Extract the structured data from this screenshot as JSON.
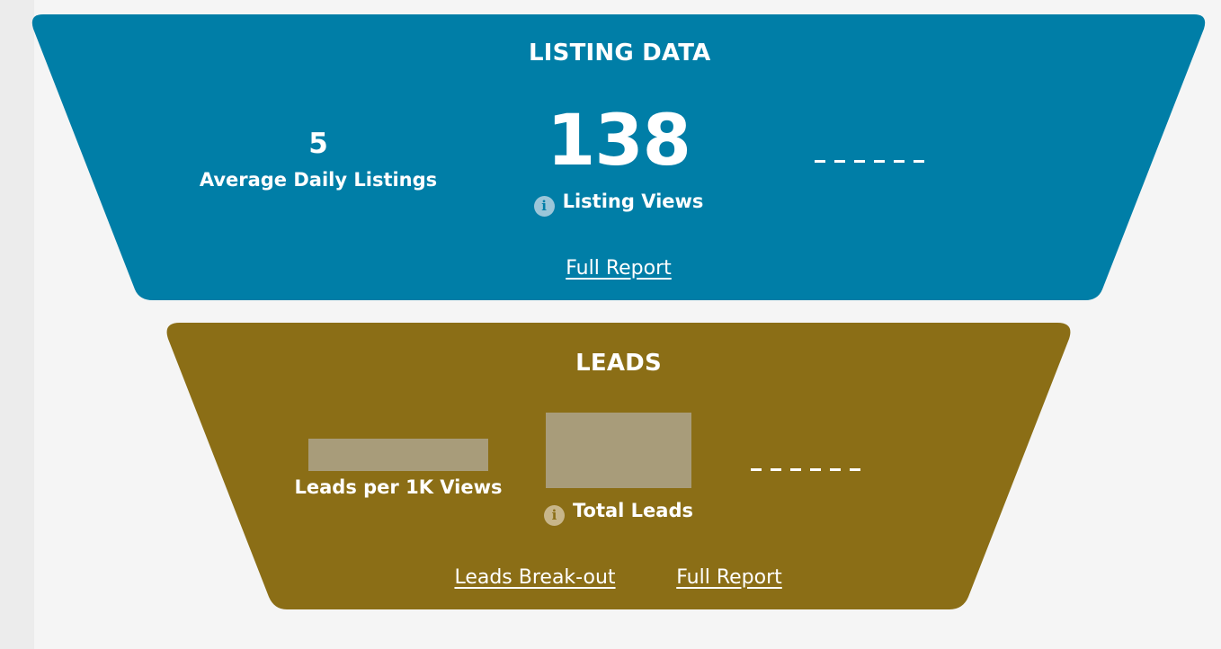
{
  "colors": {
    "listing_panel": "#007ea7",
    "leads_panel": "#8b6e16",
    "info_icon_listing": "#9bc6d9",
    "info_icon_leads": "#c8b68a",
    "redacted_block": "#a89c7a",
    "text": "#ffffff",
    "page_background": "#f5f5f5"
  },
  "listing": {
    "title": "LISTING DATA",
    "average_daily_listings": {
      "value": "5",
      "label": "Average Daily Listings"
    },
    "listing_views": {
      "value": "138",
      "label": "Listing Views",
      "icon": "info-icon"
    },
    "placeholder": "- - - - - -",
    "full_report_link": "Full Report"
  },
  "leads": {
    "title": "LEADS",
    "leads_per_1k_views": {
      "label": "Leads per 1K Views"
    },
    "total_leads": {
      "label": "Total Leads",
      "icon": "info-icon"
    },
    "placeholder": "- - - - - -",
    "breakout_link": "Leads Break-out",
    "full_report_link": "Full Report"
  }
}
